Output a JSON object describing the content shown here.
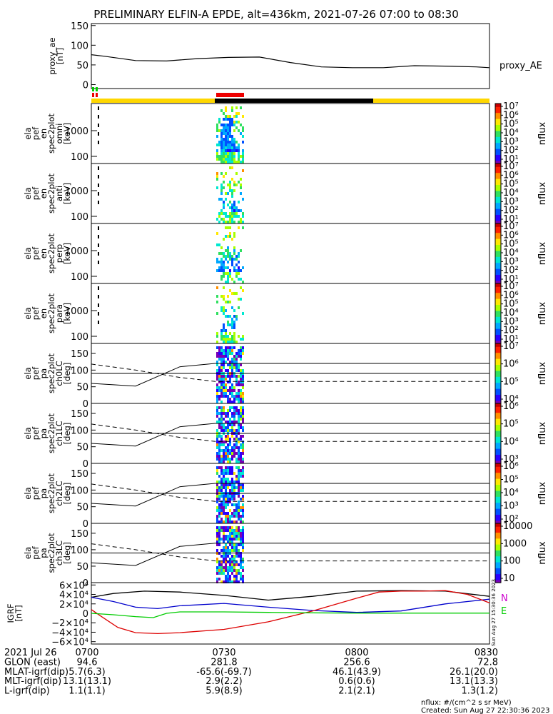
{
  "title": "PRELIMINARY ELFIN-A EPDE, alt=436km, 2021-07-26 07:00 to 08:30",
  "colors": {
    "yellow_bar": "#ffd700",
    "black_bar": "#000000",
    "red_bar": "#ee0000",
    "green_tick": "#00cc00",
    "red_tick": "#ee0000",
    "bx": "#0000cc",
    "by": "#dd0000",
    "bz": "#00cc00",
    "bt": "#000000"
  },
  "chart_data": [
    {
      "id": "proxy_ae",
      "type": "line",
      "ylabel": "proxy_ae\n[nT]",
      "series_label": "proxy_AE",
      "ylim": [
        -10,
        155
      ],
      "yticks": [
        "0",
        "50",
        "100",
        "150"
      ],
      "x": [
        0,
        3,
        10,
        17,
        24,
        31,
        38,
        45,
        52,
        59,
        66,
        73,
        80,
        87,
        90
      ],
      "values": [
        76,
        72,
        61,
        60,
        66,
        69,
        70,
        56,
        45,
        43,
        43,
        48,
        47,
        45,
        43
      ]
    },
    {
      "id": "en_omni",
      "type": "heatmap",
      "ylabel": "ela\npef\nen\nspec2plot\nomni\n[keV]",
      "zlabel": "nflux",
      "yscale": "log",
      "yticks": [
        "100",
        "1000"
      ],
      "ztick_labels": [
        "10¹",
        "10²",
        "10³",
        "10⁴",
        "10⁵",
        "10⁶",
        "10⁷"
      ]
    },
    {
      "id": "en_anti",
      "type": "heatmap",
      "ylabel": "ela\npef\nen\nspec2plot\nanti\n[keV]",
      "zlabel": "nflux",
      "yscale": "log",
      "yticks": [
        "100",
        "1000"
      ],
      "ztick_labels": [
        "10¹",
        "10²",
        "10³",
        "10⁴",
        "10⁵",
        "10⁶",
        "10⁷"
      ]
    },
    {
      "id": "en_perp",
      "type": "heatmap",
      "ylabel": "ela\npef\nen\nspec2plot\nperp\n[keV]",
      "zlabel": "nflux",
      "yscale": "log",
      "yticks": [
        "100",
        "1000"
      ],
      "ztick_labels": [
        "10¹",
        "10²",
        "10³",
        "10⁴",
        "10⁵",
        "10⁶",
        "10⁷"
      ]
    },
    {
      "id": "en_para",
      "type": "heatmap",
      "ylabel": "ela\npef\nen\nspec2plot\npara\n[keV]",
      "zlabel": "nflux",
      "yscale": "log",
      "yticks": [
        "100",
        "1000"
      ],
      "ztick_labels": [
        "10¹",
        "10²",
        "10³",
        "10⁴",
        "10⁵",
        "10⁶",
        "10⁷"
      ]
    },
    {
      "id": "pa_ch0",
      "type": "heatmap",
      "ylabel": "ela\npef\npa\nspec2plot\nch0LC\n[deg]",
      "zlabel": "nflux",
      "ylim": [
        0,
        180
      ],
      "yticks": [
        "0",
        "50",
        "100",
        "150"
      ],
      "ztick_labels": [
        "10⁴",
        "10⁵",
        "10⁶",
        "10⁷"
      ],
      "solid": [
        [
          0,
          60
        ],
        [
          10,
          52
        ],
        [
          20,
          110
        ],
        [
          28,
          120
        ],
        [
          90,
          120
        ]
      ],
      "dashed": [
        [
          0,
          118
        ],
        [
          10,
          100
        ],
        [
          20,
          78
        ],
        [
          28,
          66
        ],
        [
          90,
          66
        ]
      ],
      "hline": 90
    },
    {
      "id": "pa_ch1",
      "type": "heatmap",
      "ylabel": "ela\npef\npa\nspec2plot\nch1LC\n[deg]",
      "zlabel": "nflux",
      "ylim": [
        0,
        180
      ],
      "yticks": [
        "0",
        "50",
        "100",
        "150"
      ],
      "ztick_labels": [
        "10³",
        "10⁴",
        "10⁵",
        "10⁶"
      ],
      "solid": [
        [
          0,
          60
        ],
        [
          10,
          52
        ],
        [
          20,
          110
        ],
        [
          28,
          120
        ],
        [
          90,
          120
        ]
      ],
      "dashed": [
        [
          0,
          118
        ],
        [
          10,
          100
        ],
        [
          20,
          78
        ],
        [
          28,
          66
        ],
        [
          90,
          66
        ]
      ],
      "hline": 90
    },
    {
      "id": "pa_ch2",
      "type": "heatmap",
      "ylabel": "ela\npef\npa\nspec2plot\nch2LC\n[deg]",
      "zlabel": "nflux",
      "ylim": [
        0,
        180
      ],
      "yticks": [
        "0",
        "50",
        "100",
        "150"
      ],
      "ztick_labels": [
        "10²",
        "10³",
        "10⁴",
        "10⁵",
        "10⁶"
      ],
      "solid": [
        [
          0,
          60
        ],
        [
          10,
          52
        ],
        [
          20,
          110
        ],
        [
          28,
          120
        ],
        [
          90,
          120
        ]
      ],
      "dashed": [
        [
          0,
          118
        ],
        [
          10,
          100
        ],
        [
          20,
          78
        ],
        [
          28,
          66
        ],
        [
          90,
          66
        ]
      ],
      "hline": 90
    },
    {
      "id": "pa_ch3",
      "type": "heatmap",
      "ylabel": "ela\npef\npa\nspec2plot\nch3LC\n[deg]",
      "zlabel": "nflux",
      "ylim": [
        0,
        180
      ],
      "yticks": [
        "0",
        "50",
        "100",
        "150"
      ],
      "ztick_labels": [
        "10",
        "100",
        "1000",
        "10000"
      ],
      "solid": [
        [
          0,
          60
        ],
        [
          10,
          52
        ],
        [
          20,
          110
        ],
        [
          28,
          120
        ],
        [
          90,
          120
        ]
      ],
      "dashed": [
        [
          0,
          118
        ],
        [
          10,
          100
        ],
        [
          20,
          78
        ],
        [
          28,
          66
        ],
        [
          90,
          66
        ]
      ],
      "hline": 90
    },
    {
      "id": "igrf",
      "type": "line",
      "ylabel": "IGRF\n[nT]",
      "ylim": [
        -65000,
        65000
      ],
      "yticks": [
        "−6×10⁴",
        "−4×10⁴",
        "−2×10⁴",
        "0",
        "2×10⁴",
        "4×10⁴",
        "6×10⁴"
      ],
      "legend": [
        "N",
        "E"
      ],
      "side_note": "Sun Aug 27 15:30:36 2023",
      "series": [
        {
          "key": "bt",
          "x": [
            0,
            5,
            12,
            20,
            30,
            40,
            50,
            60,
            70,
            80,
            90
          ],
          "values": [
            34000,
            42000,
            47000,
            45000,
            38000,
            28000,
            36000,
            47000,
            48000,
            47000,
            36000
          ]
        },
        {
          "key": "bx",
          "x": [
            0,
            5,
            10,
            15,
            20,
            30,
            40,
            50,
            60,
            70,
            80,
            90
          ],
          "values": [
            34000,
            25000,
            13000,
            10000,
            16000,
            21000,
            13000,
            6000,
            2000,
            5000,
            20000,
            30000
          ]
        },
        {
          "key": "by",
          "x": [
            0,
            2,
            6,
            10,
            15,
            20,
            30,
            40,
            50,
            60,
            65,
            70,
            75,
            80,
            85,
            90
          ],
          "values": [
            8000,
            -5000,
            -30000,
            -41000,
            -43000,
            -41000,
            -34000,
            -18000,
            5000,
            32000,
            45000,
            47000,
            47000,
            48000,
            40000,
            22000
          ]
        },
        {
          "key": "bz",
          "x": [
            0,
            5,
            10,
            14,
            17,
            20,
            30,
            40,
            50,
            60,
            70,
            80,
            90
          ],
          "values": [
            0,
            -3000,
            -7000,
            -9000,
            0,
            3000,
            3000,
            2000,
            1000,
            500,
            500,
            500,
            500
          ]
        }
      ]
    }
  ],
  "footer": {
    "rows": [
      {
        "label": "2021 Jul 26",
        "values": [
          "0700",
          "0730",
          "0800",
          "0830"
        ]
      },
      {
        "label": "GLON (east)",
        "values": [
          "94.6",
          "281.8",
          "256.6",
          "72.8"
        ]
      },
      {
        "label": "MLAT-igrf(dip)",
        "values": [
          "5.7(6.3)",
          "-65.6(-69.7)",
          "46.1(43.9)",
          "26.1(20.0)"
        ]
      },
      {
        "label": "MLT-igrf(dip)",
        "values": [
          "13.1(13.1)",
          "2.9(2.2)",
          "0.6(0.6)",
          "13.1(13.3)"
        ]
      },
      {
        "label": "L-igrf(dip)",
        "values": [
          "1.1(1.1)",
          "5.9(8.9)",
          "2.1(2.1)",
          "1.3(1.2)"
        ]
      }
    ],
    "note1": "nflux: #/(cm^2 s sr MeV)",
    "note2": "Created: Sun Aug 27 22:30:36 2023"
  }
}
